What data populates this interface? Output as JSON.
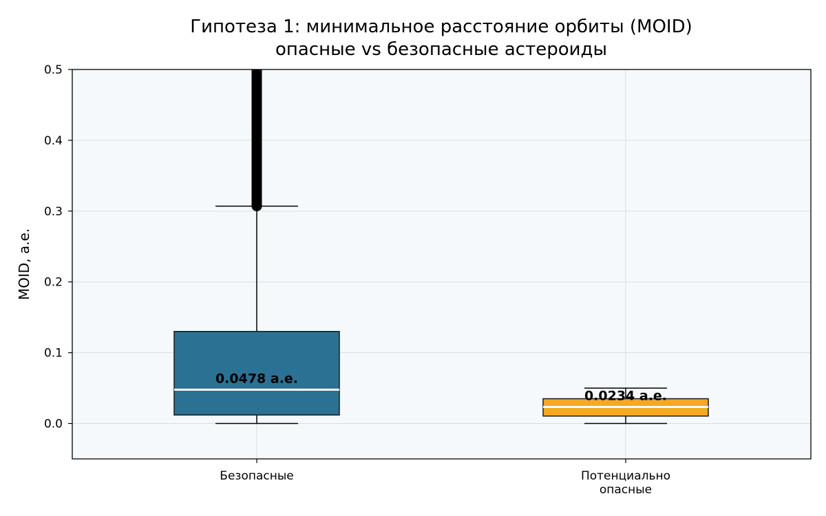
{
  "chart_data": {
    "type": "box",
    "title_lines": [
      "Гипотеза 1: минимальное расстояние орбиты (MOID)",
      "опасные vs безопасные астероиды"
    ],
    "ylabel": "MOID, а.е.",
    "xlabel": "",
    "ylim": [
      -0.05,
      0.5
    ],
    "yticks": [
      "0.0",
      "0.1",
      "0.2",
      "0.3",
      "0.4",
      "0.5"
    ],
    "grid": true,
    "colors": {
      "plot_background": "#f5f9fc",
      "grid": "#d5dde3",
      "median_line": "#ffffff",
      "outliers": "#000000"
    },
    "categories": [
      {
        "label_lines": [
          "Безопасные"
        ],
        "whisker_low": 0.0,
        "q1": 0.012,
        "median": 0.0478,
        "q3": 0.13,
        "whisker_high": 0.307,
        "outlier_range": [
          0.307,
          0.5
        ],
        "median_label": "0.0478 а.е.",
        "color": "#2b7193"
      },
      {
        "label_lines": [
          "Потенциально",
          "опасные"
        ],
        "whisker_low": 0.0,
        "q1": 0.0105,
        "median": 0.0234,
        "q3": 0.035,
        "whisker_high": 0.05,
        "outlier_range": null,
        "median_label": "0.0234 а.е.",
        "color": "#f6a823"
      }
    ]
  }
}
